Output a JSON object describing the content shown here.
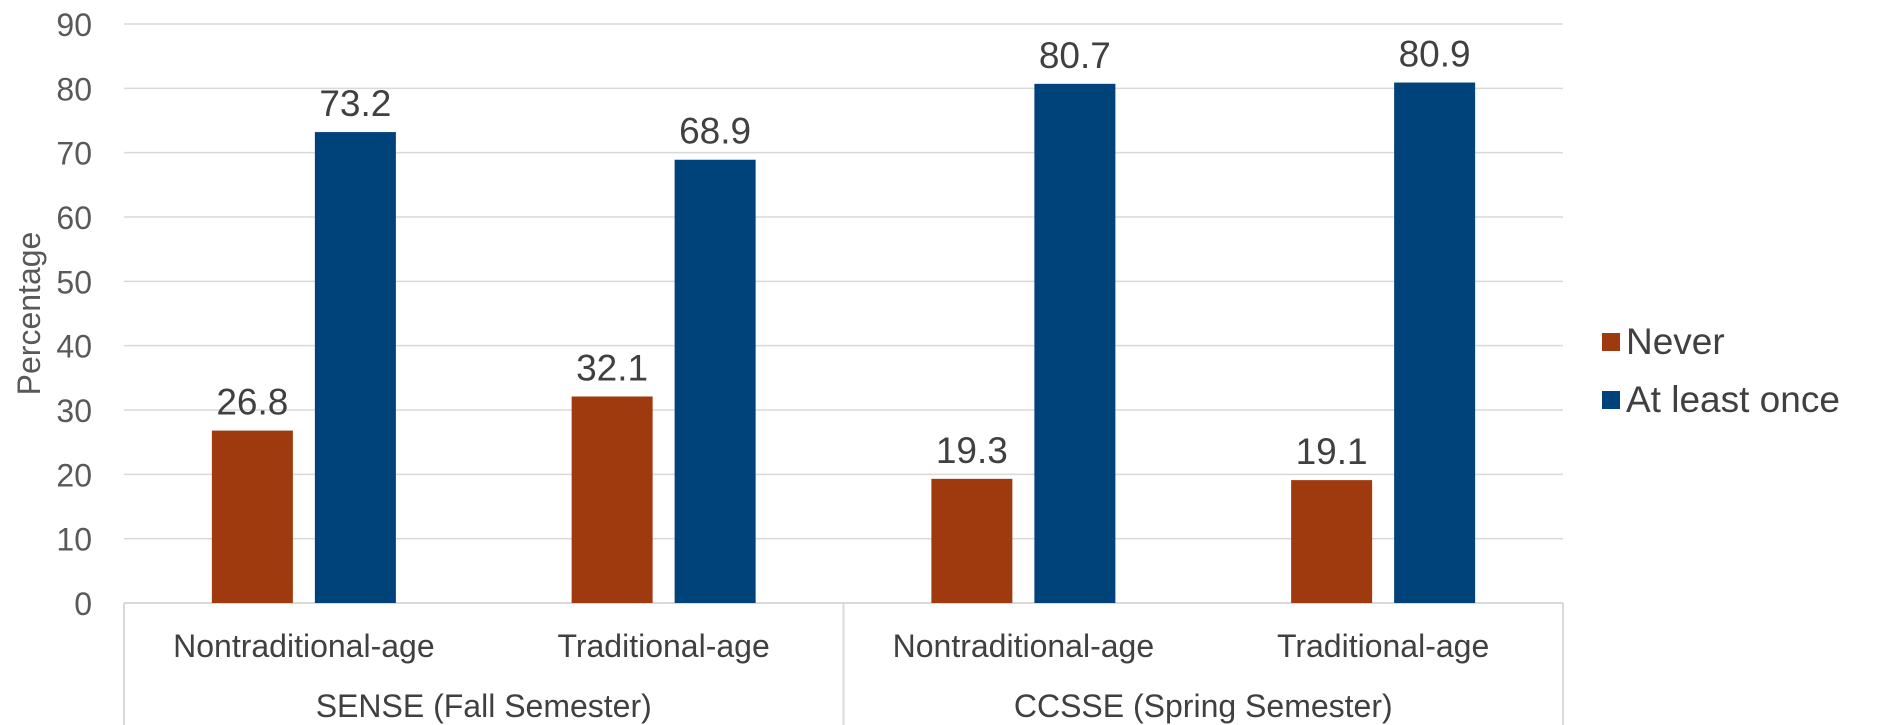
{
  "chart_data": {
    "type": "bar",
    "ylabel": "Percentage",
    "ylim": [
      0,
      90
    ],
    "ytick_step": 10,
    "grid": true,
    "legend_position": "right",
    "groups": [
      {
        "label": "SENSE (Fall Semester)",
        "categories": [
          "Nontraditional-age",
          "Traditional-age"
        ]
      },
      {
        "label": "CCSSE (Spring Semester)",
        "categories": [
          "Nontraditional-age",
          "Traditional-age"
        ]
      }
    ],
    "categories": [
      "Nontraditional-age",
      "Traditional-age",
      "Nontraditional-age",
      "Traditional-age"
    ],
    "series": [
      {
        "name": "Never",
        "color": "#9E3A0E",
        "values": [
          26.8,
          32.1,
          19.3,
          19.1
        ]
      },
      {
        "name": "At least once",
        "color": "#00427A",
        "values": [
          73.2,
          68.9,
          80.7,
          80.9
        ]
      }
    ],
    "data_labels": [
      [
        "26.8",
        "32.1",
        "19.3",
        "19.1"
      ],
      [
        "73.2",
        "68.9",
        "80.7",
        "80.9"
      ]
    ]
  }
}
